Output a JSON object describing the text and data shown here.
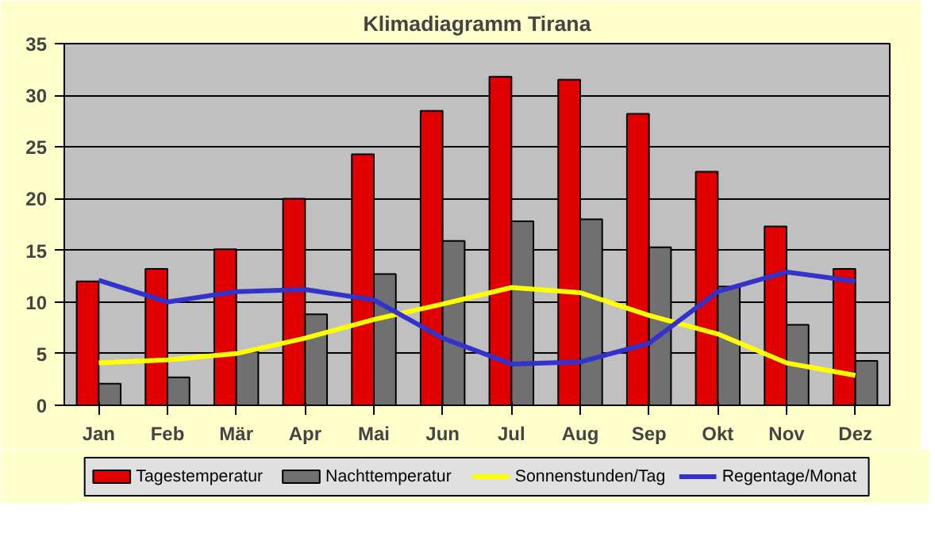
{
  "chart_data": {
    "type": "bar",
    "title": "Klimadiagramm Tirana",
    "categories": [
      "Jan",
      "Feb",
      "Mär",
      "Apr",
      "Mai",
      "Jun",
      "Jul",
      "Aug",
      "Sep",
      "Okt",
      "Nov",
      "Dez"
    ],
    "series": [
      {
        "name": "Tagestemperatur",
        "color": "#e00000",
        "values": [
          12,
          13.2,
          15.1,
          20,
          24.3,
          28.5,
          31.8,
          31.5,
          28.2,
          22.6,
          17.3,
          13.2
        ]
      },
      {
        "name": "Nachttemperatur",
        "color": "#707070",
        "values": [
          2.1,
          2.7,
          5.2,
          8.8,
          12.7,
          15.9,
          17.8,
          18,
          15.3,
          11.5,
          7.8,
          4.3
        ]
      },
      {
        "name": "Sonnenstunden/Tag",
        "type": "line",
        "color": "#ffff00",
        "values": [
          4.1,
          4.4,
          5,
          6.5,
          8.3,
          9.8,
          11.4,
          10.9,
          8.7,
          6.9,
          4.1,
          2.9
        ]
      },
      {
        "name": "Regentage/Monat",
        "type": "line",
        "color": "#3333cc",
        "values": [
          12.1,
          10,
          11,
          11.2,
          10.2,
          6.5,
          4,
          4.2,
          6,
          11,
          12.9,
          12
        ]
      }
    ],
    "ylim": [
      0,
      35
    ],
    "yticks": [
      0,
      5,
      10,
      15,
      20,
      25,
      30,
      35
    ],
    "grid": "y",
    "legend": "bottom",
    "marker": "none",
    "line_style": "solid"
  }
}
